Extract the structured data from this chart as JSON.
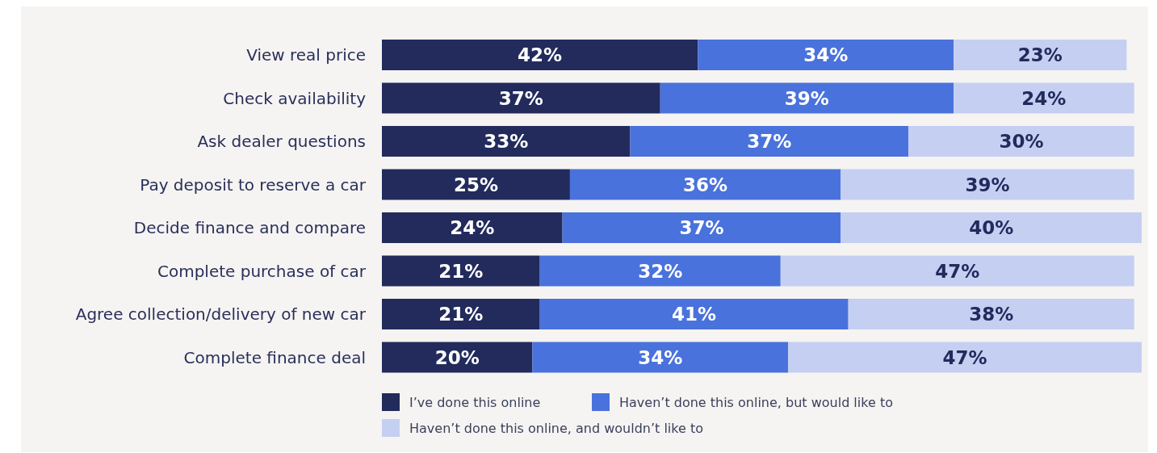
{
  "chart_data": {
    "type": "bar",
    "orientation": "horizontal",
    "stacked": true,
    "legend": "bottom",
    "categories": [
      "View real price",
      "Check availability",
      "Ask dealer questions",
      "Pay deposit to reserve a car",
      "Decide finance and compare",
      "Complete purchase of car",
      "Agree collection/delivery of new car",
      "Complete finance deal"
    ],
    "series": [
      {
        "name": "I’ve done this online",
        "color": "#222b5c",
        "values": [
          42,
          37,
          33,
          25,
          24,
          21,
          21,
          20
        ],
        "value_labels": [
          "42%",
          "37%",
          "33%",
          "25%",
          "24%",
          "21%",
          "21%",
          "20%"
        ]
      },
      {
        "name": "Haven’t done this online, but would like to",
        "color": "#4a72dc",
        "values": [
          34,
          39,
          37,
          36,
          37,
          32,
          41,
          34
        ],
        "value_labels": [
          "34%",
          "39%",
          "37%",
          "36%",
          "37%",
          "32%",
          "41%",
          "34%"
        ]
      },
      {
        "name": "Haven’t done this online, and wouldn’t like to",
        "color": "#c5cff2",
        "values": [
          23,
          24,
          30,
          39,
          40,
          47,
          38,
          47
        ],
        "value_labels": [
          "23%",
          "24%",
          "30%",
          "39%",
          "40%",
          "47%",
          "38%",
          "47%"
        ]
      }
    ]
  }
}
